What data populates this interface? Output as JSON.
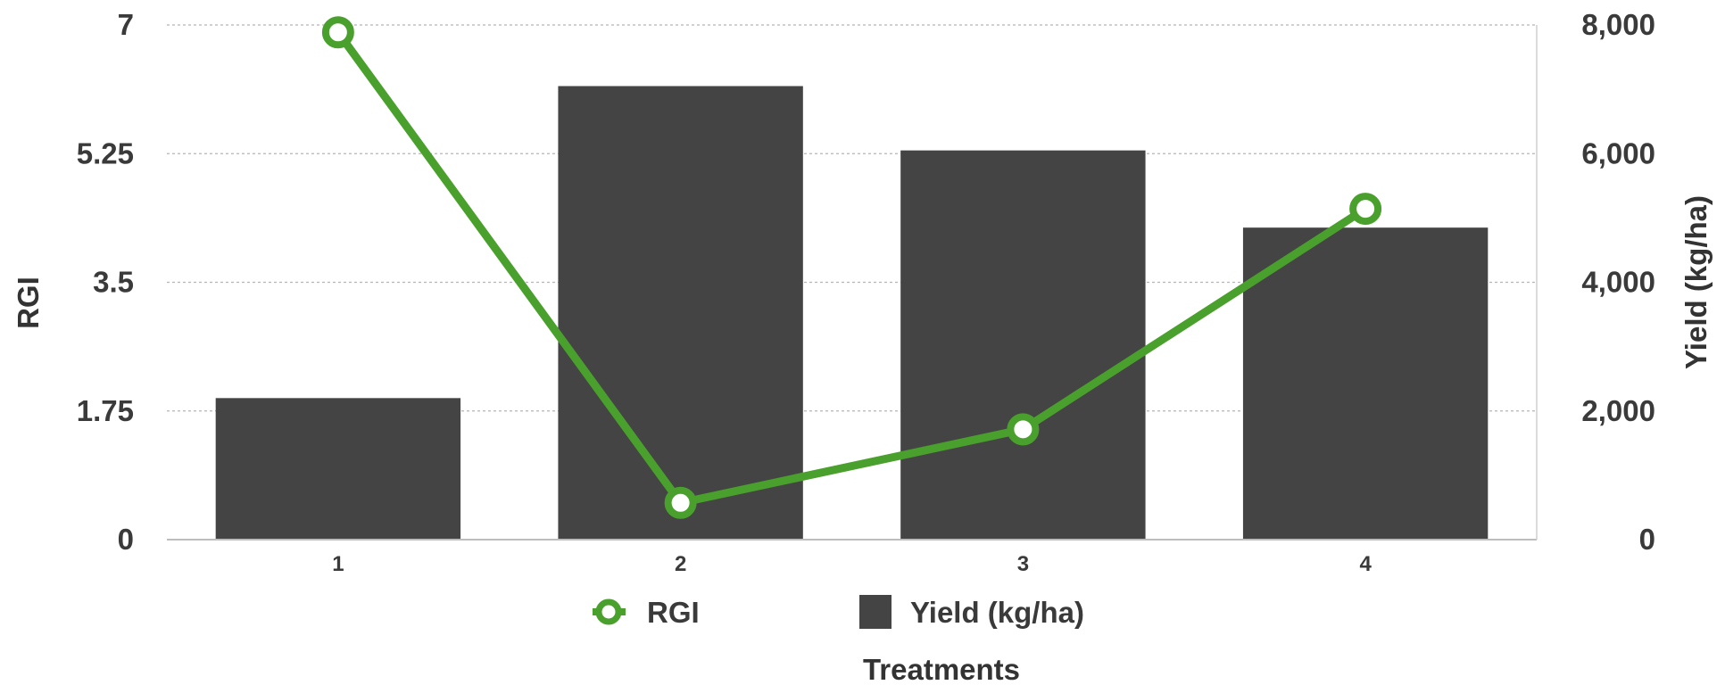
{
  "chart_data": {
    "type": "bar",
    "categories": [
      "1",
      "2",
      "3",
      "4"
    ],
    "xlabel": "Treatments",
    "ylabel_left": "RGI",
    "ylabel_right": "Yield (kg/ha)",
    "y_left": {
      "range": [
        0,
        7
      ],
      "ticks": [
        0,
        1.75,
        3.5,
        5.25,
        7
      ],
      "tick_labels": [
        "0",
        "1.75",
        "3.5",
        "5.25",
        "7"
      ]
    },
    "y_right": {
      "range": [
        0,
        8000
      ],
      "ticks": [
        0,
        2000,
        4000,
        6000,
        8000
      ],
      "tick_labels": [
        "0",
        "2,000",
        "4,000",
        "6,000",
        "8,000"
      ]
    },
    "grid": true,
    "legend_position": "bottom",
    "series": [
      {
        "name": "RGI",
        "type": "line",
        "axis": "left",
        "color": "#4aa02c",
        "values": [
          6.9,
          0.5,
          1.5,
          4.5
        ]
      },
      {
        "name": "Yield (kg/ha)",
        "type": "bar",
        "axis": "right",
        "color": "#444444",
        "values": [
          2200,
          7050,
          6050,
          4850
        ]
      }
    ]
  }
}
